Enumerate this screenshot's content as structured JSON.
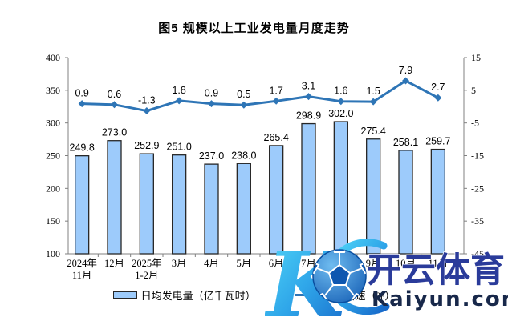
{
  "page": {
    "background": "#FFFFFF"
  },
  "chart_data": {
    "type": "bar+line",
    "title": "图5  规模以上工业发电量月度走势",
    "categories": [
      "2024年\n11月",
      "12月",
      "2025年\n1-2月",
      "3月",
      "4月",
      "5月",
      "6月",
      "7月",
      "8月",
      "9月",
      "10月",
      "11月"
    ],
    "series": [
      {
        "name": "日均发电量（亿千瓦时）",
        "type": "bar",
        "axis": "left",
        "color": "#9DCBFB",
        "border_color": "#262626",
        "values": [
          249.8,
          273.0,
          252.9,
          251.0,
          237.0,
          238.0,
          265.4,
          298.9,
          302.0,
          275.4,
          258.1,
          259.7
        ]
      },
      {
        "name": "同比增速（%）",
        "type": "line",
        "axis": "right",
        "color": "#2E75B6",
        "values": [
          0.9,
          0.6,
          -1.3,
          1.8,
          0.9,
          0.5,
          1.7,
          3.1,
          1.6,
          1.5,
          7.9,
          2.7
        ]
      }
    ],
    "left_axis": {
      "min": 100,
      "max": 400,
      "ticks": [
        400,
        350,
        300,
        250,
        200,
        150,
        100
      ]
    },
    "right_axis": {
      "min": -45,
      "max": 15,
      "ticks": [
        15,
        5,
        -5,
        -15,
        -25,
        -35,
        -45
      ]
    },
    "grid": false,
    "data_labels": true,
    "legend_position": "bottom"
  },
  "legend": {
    "bar_label": "日均发电量（亿千瓦时）",
    "line_label": "同比增速（%）"
  },
  "watermark": {
    "logo_letter": "K",
    "brand_cn": "开云体育",
    "domain": "Kaiyun.com",
    "accent_light": "#4FD6F7",
    "accent_dark": "#1565C0",
    "text_blue": "#2A3B9A",
    "text_navy": "#18284A"
  }
}
